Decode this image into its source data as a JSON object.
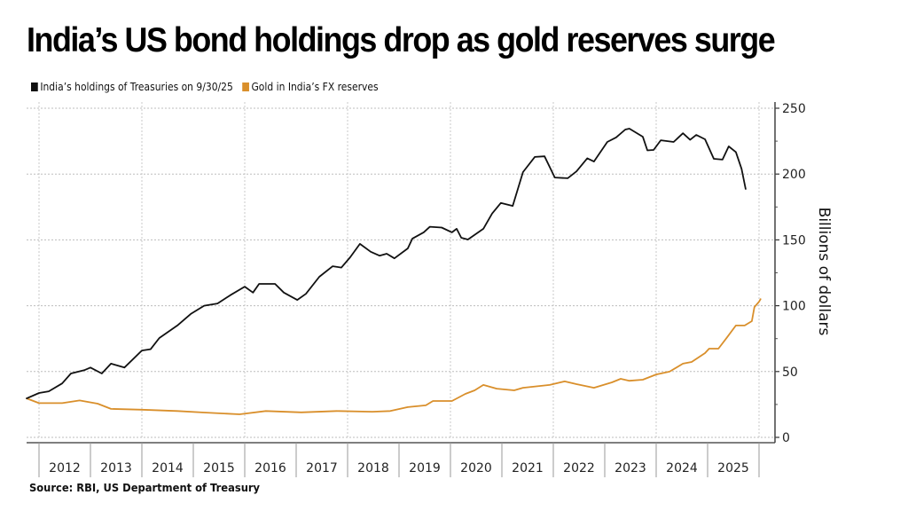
{
  "title": "India’s US bond holdings drop as gold reserves surge",
  "legend": [
    {
      "label": "India’s holdings of Treasuries on 9/30/25",
      "color": "#111111"
    },
    {
      "label": "Gold in India’s FX reserves",
      "color": "#d98f2b"
    }
  ],
  "source": "Source:  RBI, US Department of Treasury",
  "chart_data": {
    "type": "line",
    "title": "India’s US bond holdings drop as gold reserves surge",
    "xlabel": "",
    "ylabel": "Billions of dollars",
    "x_tick_labels": [
      "2012",
      "2013",
      "2014",
      "2015",
      "2016",
      "2017",
      "2018",
      "2019",
      "2020",
      "2021",
      "2022",
      "2023",
      "2024",
      "2025"
    ],
    "xlim": [
      2011.76,
      2026.3
    ],
    "ylim": [
      0,
      250
    ],
    "y_ticks": [
      0,
      50,
      100,
      150,
      200,
      250
    ],
    "y_axis_position": "right",
    "grid": true,
    "legend_position": "top-left",
    "series": [
      {
        "name": "India’s holdings of Treasuries on 9/30/25",
        "color": "#111111",
        "points": [
          [
            2011.76,
            29.6
          ],
          [
            2012.0,
            33.7
          ],
          [
            2012.19,
            35.0
          ],
          [
            2012.45,
            41.0
          ],
          [
            2012.62,
            48.5
          ],
          [
            2012.88,
            51.0
          ],
          [
            2013.0,
            53.0
          ],
          [
            2013.22,
            48.5
          ],
          [
            2013.4,
            56.0
          ],
          [
            2013.66,
            53.0
          ],
          [
            2014.0,
            66.0
          ],
          [
            2014.17,
            67.0
          ],
          [
            2014.34,
            75.5
          ],
          [
            2014.69,
            85.0
          ],
          [
            2014.95,
            93.7
          ],
          [
            2015.21,
            100.0
          ],
          [
            2015.47,
            101.7
          ],
          [
            2015.72,
            108.0
          ],
          [
            2016.0,
            114.5
          ],
          [
            2016.16,
            110.0
          ],
          [
            2016.28,
            116.6
          ],
          [
            2016.59,
            116.6
          ],
          [
            2016.76,
            110.0
          ],
          [
            2017.02,
            104.4
          ],
          [
            2017.19,
            109.0
          ],
          [
            2017.45,
            122.0
          ],
          [
            2017.71,
            130.0
          ],
          [
            2017.88,
            129.0
          ],
          [
            2018.05,
            136.8
          ],
          [
            2018.24,
            147.0
          ],
          [
            2018.45,
            141.0
          ],
          [
            2018.62,
            138.0
          ],
          [
            2018.76,
            139.5
          ],
          [
            2018.91,
            136.0
          ],
          [
            2019.17,
            143.5
          ],
          [
            2019.26,
            151.0
          ],
          [
            2019.48,
            155.7
          ],
          [
            2019.6,
            160.0
          ],
          [
            2019.83,
            159.4
          ],
          [
            2020.03,
            155.7
          ],
          [
            2020.12,
            158.4
          ],
          [
            2020.21,
            151.6
          ],
          [
            2020.34,
            150.3
          ],
          [
            2020.64,
            158.4
          ],
          [
            2020.81,
            170.0
          ],
          [
            2020.98,
            178.0
          ],
          [
            2021.21,
            175.8
          ],
          [
            2021.41,
            201.5
          ],
          [
            2021.64,
            213.0
          ],
          [
            2021.83,
            213.5
          ],
          [
            2022.03,
            197.4
          ],
          [
            2022.28,
            196.8
          ],
          [
            2022.45,
            202.0
          ],
          [
            2022.66,
            212.0
          ],
          [
            2022.79,
            209.5
          ],
          [
            2023.05,
            224.4
          ],
          [
            2023.22,
            227.8
          ],
          [
            2023.4,
            233.8
          ],
          [
            2023.48,
            234.5
          ],
          [
            2023.74,
            228.4
          ],
          [
            2023.83,
            218.0
          ],
          [
            2023.95,
            218.3
          ],
          [
            2024.09,
            225.7
          ],
          [
            2024.34,
            224.4
          ],
          [
            2024.52,
            231.0
          ],
          [
            2024.66,
            226.0
          ],
          [
            2024.78,
            229.7
          ],
          [
            2024.95,
            226.4
          ],
          [
            2025.12,
            211.6
          ],
          [
            2025.29,
            211.0
          ],
          [
            2025.41,
            221.0
          ],
          [
            2025.55,
            216.7
          ],
          [
            2025.66,
            204.0
          ],
          [
            2025.74,
            188.7
          ]
        ]
      },
      {
        "name": "Gold in India’s FX reserves",
        "color": "#d98f2b",
        "points": [
          [
            2011.76,
            29.6
          ],
          [
            2012.0,
            26.0
          ],
          [
            2012.45,
            26.0
          ],
          [
            2012.79,
            28.0
          ],
          [
            2013.14,
            25.6
          ],
          [
            2013.4,
            21.6
          ],
          [
            2014.0,
            21.0
          ],
          [
            2014.69,
            20.0
          ],
          [
            2015.21,
            18.9
          ],
          [
            2015.9,
            17.5
          ],
          [
            2016.41,
            20.0
          ],
          [
            2017.1,
            19.0
          ],
          [
            2017.79,
            20.0
          ],
          [
            2018.48,
            19.5
          ],
          [
            2018.83,
            20.0
          ],
          [
            2019.17,
            23.0
          ],
          [
            2019.52,
            24.3
          ],
          [
            2019.66,
            27.6
          ],
          [
            2020.03,
            27.6
          ],
          [
            2020.29,
            33.0
          ],
          [
            2020.47,
            35.7
          ],
          [
            2020.64,
            39.8
          ],
          [
            2020.9,
            37.0
          ],
          [
            2021.24,
            35.7
          ],
          [
            2021.41,
            37.7
          ],
          [
            2021.59,
            38.4
          ],
          [
            2021.93,
            39.8
          ],
          [
            2022.22,
            42.5
          ],
          [
            2022.45,
            40.4
          ],
          [
            2022.79,
            37.7
          ],
          [
            2023.14,
            41.8
          ],
          [
            2023.31,
            44.5
          ],
          [
            2023.48,
            43.0
          ],
          [
            2023.74,
            43.8
          ],
          [
            2024.0,
            47.8
          ],
          [
            2024.26,
            49.9
          ],
          [
            2024.52,
            56.0
          ],
          [
            2024.69,
            57.3
          ],
          [
            2024.95,
            64.0
          ],
          [
            2025.03,
            67.4
          ],
          [
            2025.21,
            67.4
          ],
          [
            2025.38,
            76.0
          ],
          [
            2025.55,
            85.0
          ],
          [
            2025.72,
            85.0
          ],
          [
            2025.86,
            88.3
          ],
          [
            2025.91,
            99.0
          ],
          [
            2026.0,
            103.0
          ],
          [
            2026.03,
            105.0
          ]
        ]
      }
    ]
  }
}
